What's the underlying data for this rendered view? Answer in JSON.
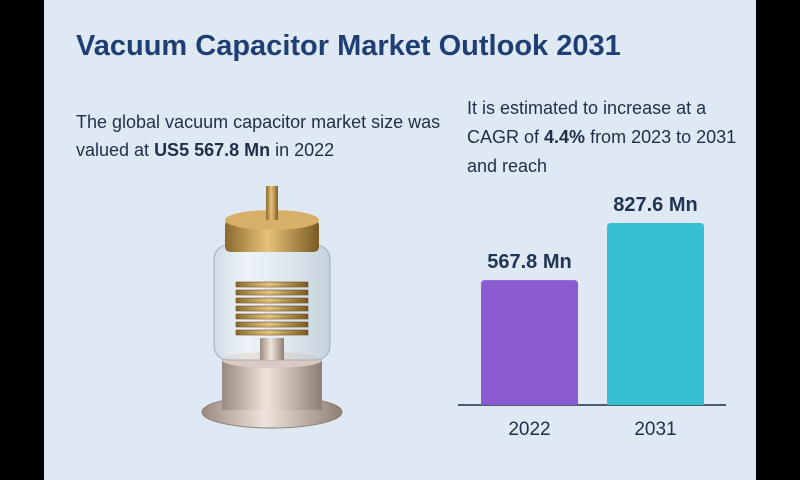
{
  "header": {
    "title": "Vacuum Capacitor Market Outlook 2031"
  },
  "intro": {
    "before": "The global vacuum capacitor market size was valued at ",
    "highlight": "US5 567.8 Mn",
    "after": " in 2022"
  },
  "forecast": {
    "before": "It is estimated to increase at a CAGR of ",
    "highlight": "4.4%",
    "after": " from 2023 to 2031 and reach"
  },
  "chart_data": {
    "type": "bar",
    "categories": [
      "2022",
      "2031"
    ],
    "values": [
      567.8,
      827.6
    ],
    "value_labels": [
      "567.8 Mn",
      "827.6 Mn"
    ],
    "colors": [
      "#8a5bd0",
      "#36bfd0"
    ]
  }
}
